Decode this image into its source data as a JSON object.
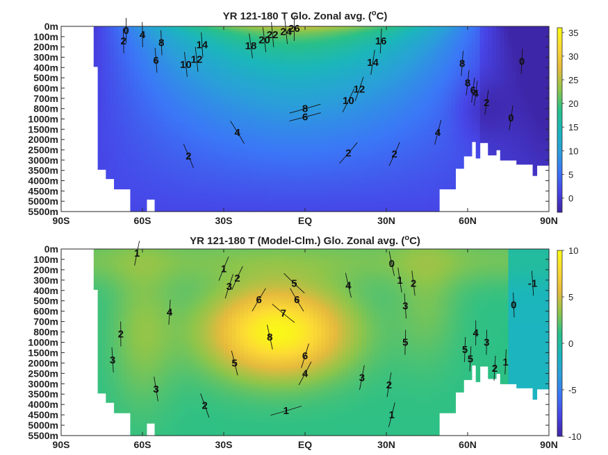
{
  "chart_data": [
    {
      "type": "heatmap",
      "title": "YR 121-180 T Glo. Zonal avg. (°C)",
      "title_parts": [
        "YR 121-180 T Glo. Zonal avg. (",
        "o",
        "C)"
      ],
      "x_ticks": [
        "90S",
        "60S",
        "30S",
        "EQ",
        "30N",
        "60N",
        "90N"
      ],
      "y_ticks": [
        "0m",
        "100m",
        "200m",
        "300m",
        "400m",
        "500m",
        "600m",
        "700m",
        "800m",
        "1000m",
        "1500m",
        "2000m",
        "2500m",
        "3000m",
        "3500m",
        "4000m",
        "4500m",
        "5000m",
        "5500m"
      ],
      "colorbar_ticks": [
        "35",
        "30",
        "25",
        "20",
        "15",
        "10",
        "5",
        "0"
      ],
      "colorbar_range": [
        -3,
        36
      ],
      "colormap": [
        "#3e26a8",
        "#4744e6",
        "#3b77f7",
        "#2a9fd9",
        "#1bb6bb",
        "#29c088",
        "#8fc54a",
        "#e5ba3d",
        "#fcd935",
        "#f9fb14"
      ],
      "contour_labels": [
        {
          "text": "0",
          "lat": -66,
          "level": 0.4
        },
        {
          "text": "2",
          "lat": -67,
          "level": 1.4
        },
        {
          "text": "4",
          "lat": -60,
          "level": 0.8
        },
        {
          "text": "8",
          "lat": -53,
          "level": 1.6
        },
        {
          "text": "6",
          "lat": -55,
          "level": 3.3
        },
        {
          "text": "10",
          "lat": -44,
          "level": 3.7
        },
        {
          "text": "12",
          "lat": -40,
          "level": 3.2
        },
        {
          "text": "14",
          "lat": -38,
          "level": 1.8
        },
        {
          "text": "18",
          "lat": -20,
          "level": 1.9
        },
        {
          "text": "20",
          "lat": -15,
          "level": 1.3
        },
        {
          "text": "22",
          "lat": -12,
          "level": 0.8
        },
        {
          "text": "24",
          "lat": -7,
          "level": 0.5
        },
        {
          "text": "26",
          "lat": -4,
          "level": 0.2
        },
        {
          "text": "16",
          "lat": 28,
          "level": 1.4
        },
        {
          "text": "14",
          "lat": 25,
          "level": 3.5
        },
        {
          "text": "12",
          "lat": 20,
          "level": 6.1
        },
        {
          "text": "10",
          "lat": 16,
          "level": 7.2
        },
        {
          "text": "8",
          "lat": 0,
          "level": 8.0
        },
        {
          "text": "6",
          "lat": 0,
          "level": 8.8
        },
        {
          "text": "4",
          "lat": -25,
          "level": 10.3
        },
        {
          "text": "4",
          "lat": 49,
          "level": 10.3
        },
        {
          "text": "2",
          "lat": -43,
          "level": 12.6
        },
        {
          "text": "2",
          "lat": 16,
          "level": 12.3
        },
        {
          "text": "2",
          "lat": 33,
          "level": 12.4
        },
        {
          "text": "8",
          "lat": 58,
          "level": 3.6
        },
        {
          "text": "8",
          "lat": 60,
          "level": 5.5
        },
        {
          "text": "6",
          "lat": 62,
          "level": 6.2
        },
        {
          "text": "4",
          "lat": 63,
          "level": 6.5
        },
        {
          "text": "2",
          "lat": 67,
          "level": 7.4
        },
        {
          "text": "0",
          "lat": 80,
          "level": 3.4
        },
        {
          "text": "0",
          "lat": 76,
          "level": 8.9
        }
      ]
    },
    {
      "type": "heatmap",
      "title": "YR 121-180 T (Model-Clm.) Glo. Zonal avg. (°C)",
      "title_parts": [
        "YR 121-180 T (Model-Clm.) Glo. Zonal avg. (",
        "o",
        "C)"
      ],
      "x_ticks": [
        "90S",
        "60S",
        "30S",
        "EQ",
        "30N",
        "60N",
        "90N"
      ],
      "y_ticks": [
        "0m",
        "100m",
        "200m",
        "300m",
        "400m",
        "500m",
        "600m",
        "700m",
        "800m",
        "1000m",
        "1500m",
        "2000m",
        "2500m",
        "3000m",
        "3500m",
        "4000m",
        "4500m",
        "5000m",
        "5500m"
      ],
      "colorbar_ticks": [
        "10",
        "5",
        "0",
        "-5",
        "-10"
      ],
      "colorbar_range": [
        -10,
        10
      ],
      "colormap": [
        "#3e26a8",
        "#4744e6",
        "#3b77f7",
        "#2a9fd9",
        "#1bb6bb",
        "#29c088",
        "#8fc54a",
        "#e5ba3d",
        "#fcd935",
        "#f9fb14"
      ],
      "contour_labels": [
        {
          "text": "1",
          "lat": -62,
          "level": 0.4
        },
        {
          "text": "1",
          "lat": -30,
          "level": 1.9
        },
        {
          "text": "2",
          "lat": -25,
          "level": 2.8
        },
        {
          "text": "3",
          "lat": -28,
          "level": 3.6
        },
        {
          "text": "0",
          "lat": 32,
          "level": 1.4
        },
        {
          "text": "1",
          "lat": 35,
          "level": 3.0
        },
        {
          "text": "2",
          "lat": 40,
          "level": 3.3
        },
        {
          "text": "5",
          "lat": -4,
          "level": 3.3
        },
        {
          "text": "4",
          "lat": 16,
          "level": 3.5
        },
        {
          "text": "3",
          "lat": 37,
          "level": 5.5
        },
        {
          "text": "6",
          "lat": -17,
          "level": 4.9
        },
        {
          "text": "6",
          "lat": -3,
          "level": 4.9
        },
        {
          "text": "7",
          "lat": -8,
          "level": 6.2
        },
        {
          "text": "4",
          "lat": -50,
          "level": 6.1
        },
        {
          "text": "2",
          "lat": -68,
          "level": 8.2
        },
        {
          "text": "8",
          "lat": -13,
          "level": 8.5
        },
        {
          "text": "5",
          "lat": 37,
          "level": 9.0
        },
        {
          "text": "6",
          "lat": 0,
          "level": 10.3
        },
        {
          "text": "5",
          "lat": -26,
          "level": 11.0
        },
        {
          "text": "4",
          "lat": 0,
          "level": 12.0
        },
        {
          "text": "3",
          "lat": 21,
          "level": 12.4
        },
        {
          "text": "2",
          "lat": 31,
          "level": 13.1
        },
        {
          "text": "3",
          "lat": -55,
          "level": 13.5
        },
        {
          "text": "3",
          "lat": -71,
          "level": 10.7
        },
        {
          "text": "2",
          "lat": -37,
          "level": 15.1
        },
        {
          "text": "1",
          "lat": -7,
          "level": 15.6
        },
        {
          "text": "1",
          "lat": 32,
          "level": 16.0
        },
        {
          "text": "4",
          "lat": 63,
          "level": 8.1
        },
        {
          "text": "5",
          "lat": 59,
          "level": 9.7
        },
        {
          "text": "3",
          "lat": 67,
          "level": 9.0
        },
        {
          "text": "5",
          "lat": 61,
          "level": 10.6
        },
        {
          "text": "2",
          "lat": 70,
          "level": 11.5
        },
        {
          "text": "1",
          "lat": 74,
          "level": 10.9
        },
        {
          "text": "0",
          "lat": 77,
          "level": 5.4
        },
        {
          "text": "-1",
          "lat": 84,
          "level": 3.3
        }
      ]
    }
  ]
}
